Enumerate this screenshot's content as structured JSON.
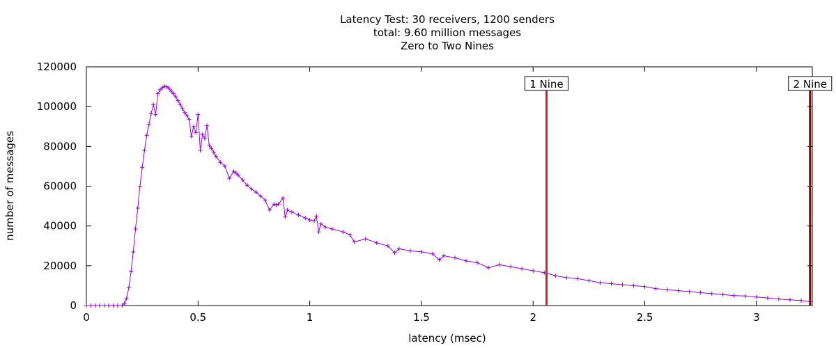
{
  "chart_data": {
    "type": "line",
    "title_lines": [
      "Latency Test: 30 receivers, 1200 senders",
      "total: 9.60 million messages",
      "Zero to Two Nines"
    ],
    "xlabel": "latency (msec)",
    "ylabel": "number of messages",
    "xlim": [
      0,
      3.25
    ],
    "ylim": [
      0,
      120000
    ],
    "x_ticks": [
      0,
      0.5,
      1,
      1.5,
      2,
      2.5,
      3
    ],
    "x_tick_labels": [
      "0",
      "0.5",
      "1",
      "1.5",
      "2",
      "2.5",
      "3"
    ],
    "y_ticks": [
      0,
      20000,
      40000,
      60000,
      80000,
      100000,
      120000
    ],
    "y_tick_labels": [
      "0",
      "20000",
      "40000",
      "60000",
      "80000",
      "100000",
      "120000"
    ],
    "grid": false,
    "series_color": "#9400d3",
    "series": [
      {
        "x": [
          0.0,
          0.02,
          0.04,
          0.06,
          0.08,
          0.1,
          0.12,
          0.14,
          0.16,
          0.17,
          0.18,
          0.19,
          0.2,
          0.21,
          0.22,
          0.23,
          0.24,
          0.25,
          0.26,
          0.27,
          0.28,
          0.29,
          0.3,
          0.31,
          0.32,
          0.33,
          0.34,
          0.35,
          0.36,
          0.37,
          0.38,
          0.39,
          0.4,
          0.41,
          0.42,
          0.43,
          0.44,
          0.45,
          0.46,
          0.47,
          0.48,
          0.49,
          0.5,
          0.51,
          0.52,
          0.53,
          0.54,
          0.55,
          0.56,
          0.57,
          0.58,
          0.6,
          0.62,
          0.64,
          0.66,
          0.67,
          0.68,
          0.7,
          0.72,
          0.74,
          0.76,
          0.78,
          0.8,
          0.82,
          0.84,
          0.85,
          0.86,
          0.88,
          0.89,
          0.9,
          0.92,
          0.95,
          0.98,
          1.0,
          1.02,
          1.03,
          1.04,
          1.05,
          1.07,
          1.1,
          1.15,
          1.18,
          1.2,
          1.25,
          1.3,
          1.35,
          1.38,
          1.4,
          1.45,
          1.5,
          1.55,
          1.58,
          1.6,
          1.65,
          1.7,
          1.75,
          1.8,
          1.85,
          1.9,
          1.95,
          2.0,
          2.05,
          2.1,
          2.15,
          2.2,
          2.25,
          2.3,
          2.35,
          2.4,
          2.45,
          2.5,
          2.55,
          2.6,
          2.65,
          2.7,
          2.75,
          2.8,
          2.85,
          2.9,
          2.95,
          3.0,
          3.05,
          3.1,
          3.15,
          3.2,
          3.24
        ],
        "values": [
          0,
          0,
          0,
          0,
          0,
          0,
          0,
          0,
          0,
          1000,
          3500,
          9000,
          17000,
          27000,
          38500,
          49000,
          60000,
          69500,
          78000,
          85500,
          91000,
          96500,
          101000,
          96000,
          106500,
          108500,
          109500,
          110200,
          110000,
          109200,
          107800,
          106500,
          105000,
          103000,
          101000,
          99000,
          97000,
          95500,
          93500,
          85000,
          90000,
          87000,
          96000,
          78000,
          86000,
          84000,
          90500,
          80500,
          79000,
          77000,
          75000,
          72000,
          70000,
          64000,
          67500,
          66500,
          65500,
          63000,
          60500,
          58500,
          57000,
          55000,
          53000,
          48000,
          51000,
          50500,
          51000,
          54000,
          44500,
          48000,
          47000,
          45500,
          44000,
          43000,
          42500,
          45000,
          37000,
          41000,
          39500,
          38500,
          37000,
          35500,
          32000,
          33500,
          31500,
          30000,
          26500,
          28500,
          27500,
          27000,
          26000,
          23000,
          25000,
          24000,
          22500,
          21500,
          19000,
          20500,
          19500,
          18500,
          17500,
          16500,
          15000,
          14000,
          13500,
          12500,
          11500,
          11000,
          10500,
          10000,
          9500,
          8500,
          8000,
          7500,
          7000,
          6500,
          6000,
          5500,
          5000,
          4800,
          4300,
          3800,
          3300,
          2900,
          2500,
          2000
        ]
      }
    ],
    "markers": [
      {
        "x": 2.06,
        "label": "1 Nine",
        "color": "#e41a1c"
      },
      {
        "x": 3.24,
        "label": "2 Nine",
        "color": "#7f0000"
      }
    ]
  }
}
